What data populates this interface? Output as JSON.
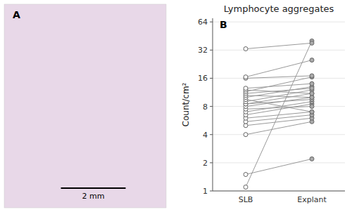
{
  "chart_data": [
    {
      "type": "image",
      "annotations": [
        "A",
        "2 mm"
      ]
    },
    {
      "type": "line",
      "title": "Lymphocyte aggregates",
      "y_label": "Count/cm²",
      "annotations": [
        "B"
      ],
      "categories": [
        "SLB",
        "Explant"
      ],
      "log": "y",
      "ylim": [
        1,
        70
      ],
      "yticks": [
        1,
        2,
        4,
        8,
        16,
        32,
        64
      ],
      "color": "#999999",
      "colors": [
        "#ffffff",
        "#aaaaaa"
      ],
      "marker": "circle",
      "series": [
        {
          "values": [
            1.1,
            40.0
          ]
        },
        {
          "values": [
            1.5,
            2.2
          ]
        },
        {
          "values": [
            4.0,
            5.5
          ]
        },
        {
          "values": [
            5.0,
            6.0
          ]
        },
        {
          "values": [
            5.5,
            6.5
          ]
        },
        {
          "values": [
            6.0,
            7.0
          ]
        },
        {
          "values": [
            6.5,
            8.5
          ]
        },
        {
          "values": [
            7.0,
            9.0
          ]
        },
        {
          "values": [
            7.5,
            8.0
          ]
        },
        {
          "values": [
            8.0,
            10.0
          ]
        },
        {
          "values": [
            8.5,
            9.5
          ]
        },
        {
          "values": [
            8.5,
            11.0
          ]
        },
        {
          "values": [
            9.0,
            12.0
          ]
        },
        {
          "values": [
            9.5,
            7.0
          ]
        },
        {
          "values": [
            10.0,
            13.0
          ]
        },
        {
          "values": [
            10.5,
            10.0
          ]
        },
        {
          "values": [
            11.0,
            12.5
          ]
        },
        {
          "values": [
            11.5,
            16.5
          ]
        },
        {
          "values": [
            12.0,
            11.0
          ]
        },
        {
          "values": [
            12.5,
            14.0
          ]
        },
        {
          "values": [
            16.0,
            17.0
          ]
        },
        {
          "values": [
            16.5,
            25.0
          ]
        },
        {
          "values": [
            33.0,
            38.0
          ]
        }
      ]
    }
  ]
}
